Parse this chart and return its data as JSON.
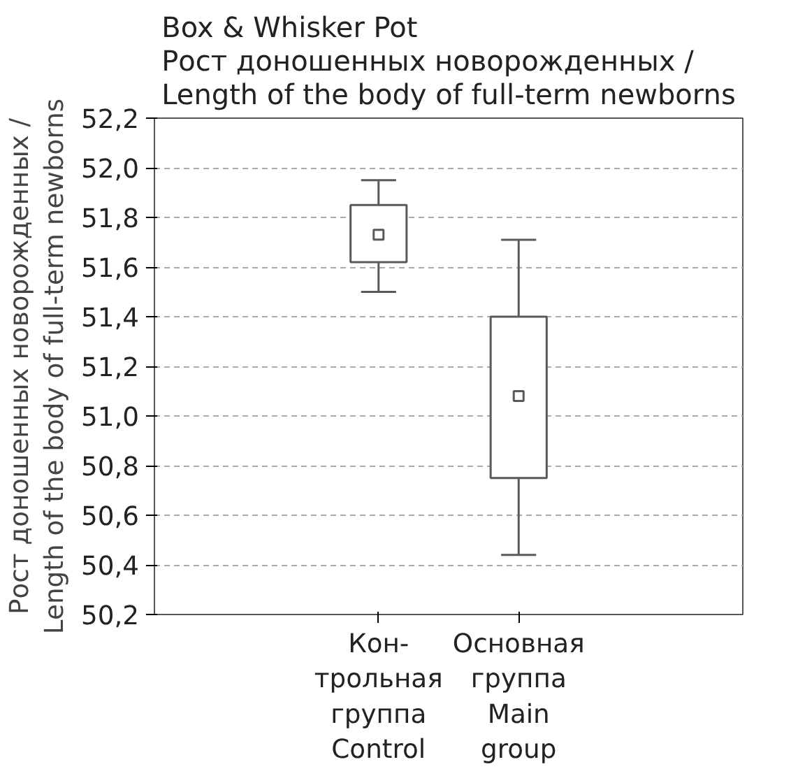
{
  "chart_data": {
    "type": "box",
    "title": "Box & Whisker Pot\nРост доношенных новорожденных /\nLength of the body of full-term newborns",
    "ylabel": "Рост доношенных новорожденных /\nLength of the body of full-term newborns",
    "categories": [
      "Кон-\nтрольная\nгруппа\nControl",
      "Основная\nгруппа\nMain\ngroup"
    ],
    "boxes": [
      {
        "low": 51.5,
        "q1": 51.62,
        "median": 51.73,
        "q3": 51.85,
        "high": 51.95
      },
      {
        "low": 50.44,
        "q1": 50.75,
        "median": 51.08,
        "q3": 51.4,
        "high": 51.71
      }
    ],
    "color": "#5a5a5a",
    "ylim": [
      50.2,
      52.2
    ],
    "yticks": [
      {
        "value": 50.2,
        "label": "50,2"
      },
      {
        "value": 50.4,
        "label": "50,4"
      },
      {
        "value": 50.6,
        "label": "50,6"
      },
      {
        "value": 50.8,
        "label": "50,8"
      },
      {
        "value": 51.0,
        "label": "51,0"
      },
      {
        "value": 51.2,
        "label": "51,2"
      },
      {
        "value": 51.4,
        "label": "51,4"
      },
      {
        "value": 51.6,
        "label": "51,6"
      },
      {
        "value": 51.8,
        "label": "51,8"
      },
      {
        "value": 52.0,
        "label": "52,0"
      },
      {
        "value": 52.2,
        "label": "52,2"
      }
    ],
    "grid": "y",
    "marker": "square"
  }
}
